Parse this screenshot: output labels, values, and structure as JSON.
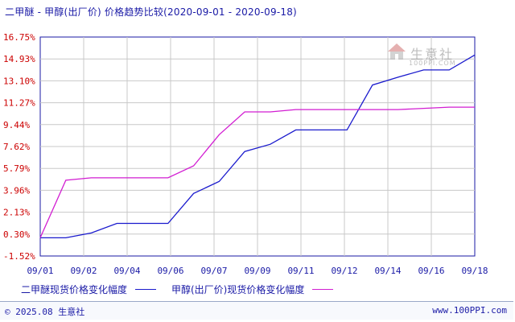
{
  "title": "二甲醚 - 甲醇(出厂价) 价格趋势比较(2020-09-01 - 2020-09-18)",
  "watermark": {
    "name": "生意社",
    "domain": "100PPI.COM"
  },
  "footer": {
    "copyright": "© 2025.08 生意社",
    "site": "www.100PPI.com"
  },
  "colors": {
    "series_1": "#1a1acd",
    "series_2": "#d21ed2",
    "grid": "#c8c8c8",
    "axis": "#1a1aa6",
    "ytick": "#cc0000"
  },
  "chart_data": {
    "type": "line",
    "title": "二甲醚 - 甲醇(出厂价) 价格趋势比较(2020-09-01 - 2020-09-18)",
    "xlabel": "",
    "ylabel": "",
    "x_ticks": [
      "09/01",
      "09/02",
      "09/04",
      "09/06",
      "09/07",
      "09/09",
      "09/11",
      "09/12",
      "09/14",
      "09/16",
      "09/18"
    ],
    "y_ticks": [
      "16.75%",
      "14.93%",
      "13.10%",
      "11.27%",
      "9.44%",
      "7.62%",
      "5.79%",
      "3.96%",
      "2.13%",
      "0.30%",
      "-1.52%"
    ],
    "ylim": [
      -1.52,
      16.75
    ],
    "grid": true,
    "legend_position": "bottom",
    "x": [
      "09/01",
      "09/02",
      "09/03",
      "09/04",
      "09/05",
      "09/06",
      "09/07",
      "09/08",
      "09/09",
      "09/10",
      "09/11",
      "09/12",
      "09/13",
      "09/14",
      "09/15",
      "09/16",
      "09/17",
      "09/18"
    ],
    "series": [
      {
        "name": "二甲醚现货价格变化幅度",
        "color": "#1a1acd",
        "values": [
          0.0,
          0.0,
          0.4,
          1.2,
          1.2,
          1.2,
          3.7,
          4.7,
          7.2,
          7.8,
          9.0,
          9.0,
          9.0,
          12.75,
          13.4,
          14.0,
          14.0,
          15.25
        ]
      },
      {
        "name": "甲醇(出厂价)现货价格变化幅度",
        "color": "#d21ed2",
        "values": [
          0.0,
          4.8,
          5.0,
          5.0,
          5.0,
          5.0,
          6.0,
          8.6,
          10.5,
          10.5,
          10.7,
          10.7,
          10.7,
          10.7,
          10.7,
          10.8,
          10.9,
          10.9
        ]
      }
    ]
  }
}
